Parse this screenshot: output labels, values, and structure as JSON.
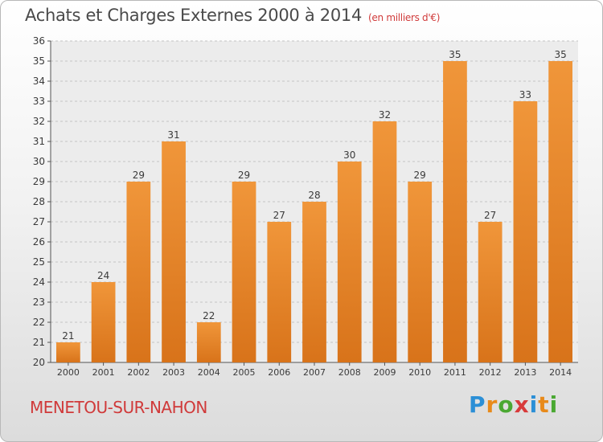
{
  "title": "Achats et Charges Externes 2000 à 2014",
  "subtitle": "(en milliers d'€)",
  "commune": "MENETOU-SUR-NAHON",
  "logo": {
    "letters": [
      "P",
      "r",
      "o",
      "x",
      "i",
      "t",
      "i"
    ],
    "colors": [
      "#2b8fd6",
      "#e88a1a",
      "#4aa832",
      "#d83a3a",
      "#2b8fd6",
      "#e88a1a",
      "#4aa832"
    ]
  },
  "chart_data": {
    "type": "bar",
    "title": "Achats et Charges Externes 2000 à 2014",
    "categories": [
      "2000",
      "2001",
      "2002",
      "2003",
      "2004",
      "2005",
      "2006",
      "2007",
      "2008",
      "2009",
      "2010",
      "2011",
      "2012",
      "2013",
      "2014"
    ],
    "values": [
      21,
      24,
      29,
      31,
      22,
      29,
      27,
      28,
      30,
      32,
      29,
      35,
      27,
      33,
      35
    ],
    "ylim": [
      20,
      36
    ],
    "yticks": [
      20,
      21,
      22,
      23,
      24,
      25,
      26,
      27,
      28,
      29,
      30,
      31,
      32,
      33,
      34,
      35,
      36
    ],
    "grid": true,
    "bar_color": "#f0963a",
    "bar_color_dark": "#d8731a"
  }
}
